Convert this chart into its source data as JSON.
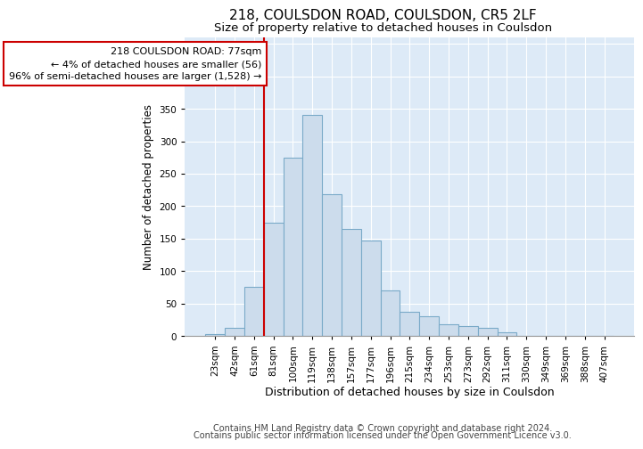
{
  "title1": "218, COULSDON ROAD, COULSDON, CR5 2LF",
  "title2": "Size of property relative to detached houses in Coulsdon",
  "xlabel": "Distribution of detached houses by size in Coulsdon",
  "ylabel": "Number of detached properties",
  "categories": [
    "23sqm",
    "42sqm",
    "61sqm",
    "81sqm",
    "100sqm",
    "119sqm",
    "138sqm",
    "157sqm",
    "177sqm",
    "196sqm",
    "215sqm",
    "234sqm",
    "253sqm",
    "273sqm",
    "292sqm",
    "311sqm",
    "330sqm",
    "349sqm",
    "369sqm",
    "388sqm",
    "407sqm"
  ],
  "values": [
    3,
    12,
    75,
    175,
    275,
    340,
    218,
    165,
    147,
    70,
    37,
    30,
    18,
    15,
    13,
    6,
    0,
    0,
    0,
    0,
    0
  ],
  "bar_color": "#ccdcec",
  "bar_edge_color": "#7aaac8",
  "vline_color": "#cc0000",
  "vline_index": 3,
  "annotation_text": "218 COULSDON ROAD: 77sqm\n← 4% of detached houses are smaller (56)\n96% of semi-detached houses are larger (1,528) →",
  "annotation_box_facecolor": "#ffffff",
  "annotation_box_edgecolor": "#cc0000",
  "background_color": "#ddeaf7",
  "grid_color": "#ffffff",
  "footer1": "Contains HM Land Registry data © Crown copyright and database right 2024.",
  "footer2": "Contains public sector information licensed under the Open Government Licence v3.0.",
  "ylim": [
    0,
    460
  ],
  "yticks": [
    0,
    50,
    100,
    150,
    200,
    250,
    300,
    350,
    400,
    450
  ],
  "title1_fontsize": 11,
  "title2_fontsize": 9.5,
  "ylabel_fontsize": 8.5,
  "xlabel_fontsize": 9,
  "tick_fontsize": 7.5,
  "ann_fontsize": 8,
  "footer_fontsize": 7
}
